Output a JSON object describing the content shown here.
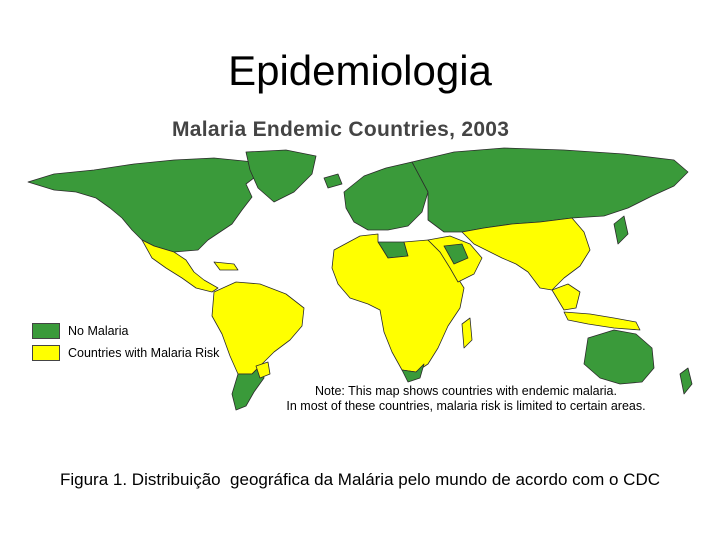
{
  "slide": {
    "title": "Epidemiologia",
    "caption": "Figura 1. Distribuição  geográfica da Malária pelo mundo de acordo com o CDC"
  },
  "map": {
    "title": "Malaria Endemic Countries, 2003",
    "legend": [
      {
        "label": "No Malaria",
        "color": "#3a9a3a"
      },
      {
        "label": "Countries with Malaria Risk",
        "color": "#ffff00"
      }
    ],
    "note_line1": "Note: This map shows countries with endemic malaria.",
    "note_line2": "In most of these countries, malaria risk is limited to certain areas.",
    "colors": {
      "no_malaria": "#3a9a3a",
      "malaria_risk": "#ffff00",
      "border": "#2b2b2b"
    }
  }
}
